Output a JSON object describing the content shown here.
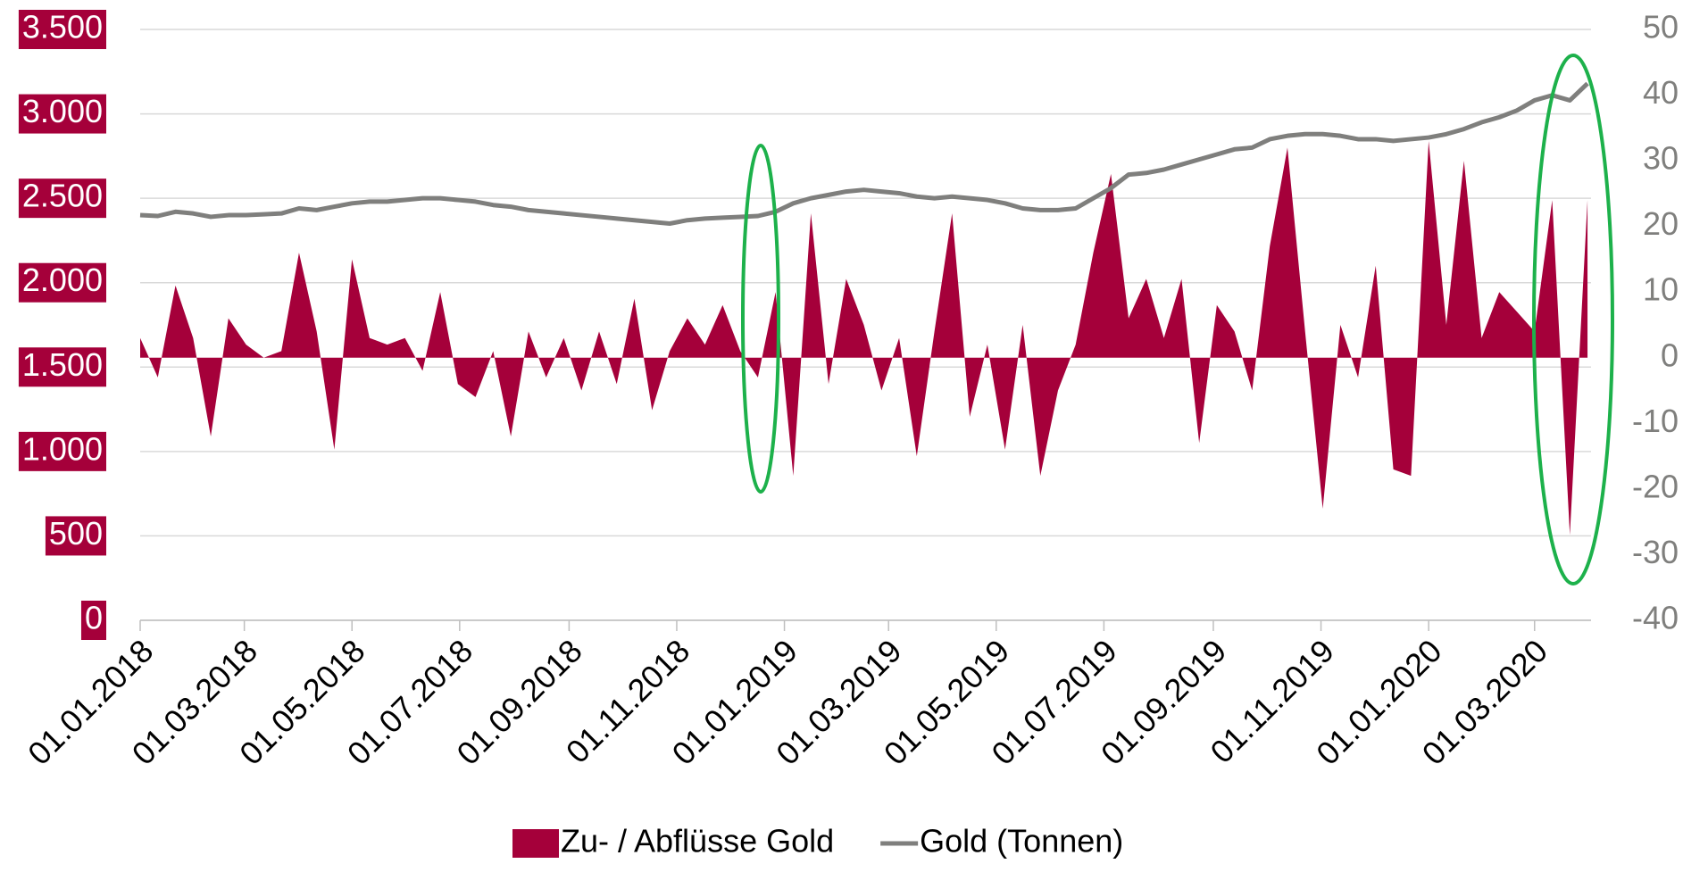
{
  "chart_data": {
    "type": "line",
    "x": [
      "2018-01-01",
      "2018-01-11",
      "2018-01-21",
      "2018-01-31",
      "2018-02-10",
      "2018-02-20",
      "2018-03-02",
      "2018-03-12",
      "2018-03-22",
      "2018-04-01",
      "2018-04-11",
      "2018-04-21",
      "2018-05-01",
      "2018-05-11",
      "2018-05-21",
      "2018-05-31",
      "2018-06-10",
      "2018-06-20",
      "2018-06-30",
      "2018-07-10",
      "2018-07-20",
      "2018-07-30",
      "2018-08-09",
      "2018-08-19",
      "2018-08-29",
      "2018-09-08",
      "2018-09-18",
      "2018-09-28",
      "2018-10-08",
      "2018-10-18",
      "2018-10-28",
      "2018-11-07",
      "2018-11-17",
      "2018-11-27",
      "2018-12-07",
      "2018-12-17",
      "2018-12-27",
      "2019-01-06",
      "2019-01-16",
      "2019-01-26",
      "2019-02-05",
      "2019-02-15",
      "2019-02-25",
      "2019-03-07",
      "2019-03-17",
      "2019-03-27",
      "2019-04-06",
      "2019-04-16",
      "2019-04-26",
      "2019-05-06",
      "2019-05-16",
      "2019-05-26",
      "2019-06-05",
      "2019-06-15",
      "2019-06-25",
      "2019-07-05",
      "2019-07-15",
      "2019-07-25",
      "2019-08-04",
      "2019-08-14",
      "2019-08-24",
      "2019-09-03",
      "2019-09-13",
      "2019-09-23",
      "2019-10-03",
      "2019-10-13",
      "2019-10-23",
      "2019-11-02",
      "2019-11-12",
      "2019-11-22",
      "2019-12-02",
      "2019-12-12",
      "2019-12-22",
      "2020-01-01",
      "2020-01-11",
      "2020-01-21",
      "2020-01-31",
      "2020-02-10",
      "2020-02-20",
      "2020-03-01",
      "2020-03-11",
      "2020-03-21",
      "2020-03-31"
    ],
    "series": [
      {
        "name": "Zu- / Abflüsse Gold",
        "type": "area",
        "axis": "y2",
        "color": "#a5003a",
        "values": [
          3,
          -3,
          11,
          3,
          -12,
          6,
          2,
          0,
          1,
          16,
          4,
          -14,
          15,
          3,
          2,
          3,
          -2,
          10,
          -4,
          -6,
          1,
          -12,
          4,
          -3,
          3,
          -5,
          4,
          -4,
          9,
          -8,
          1,
          6,
          2,
          8,
          1,
          -3,
          10,
          -18,
          22,
          -4,
          12,
          5,
          -5,
          3,
          -15,
          4,
          22,
          -9,
          2,
          -14,
          5,
          -18,
          -5,
          2,
          16,
          28,
          6,
          12,
          3,
          12,
          -13,
          8,
          4,
          -5,
          17,
          32,
          4,
          -23,
          5,
          -3,
          14,
          -17,
          -18,
          33,
          5,
          30,
          3,
          10,
          7,
          4,
          24,
          -27,
          24
        ]
      },
      {
        "name": "Gold (Tonnen)",
        "type": "line",
        "axis": "y",
        "color": "#7f7f7d",
        "values": [
          2400,
          2395,
          2420,
          2410,
          2390,
          2400,
          2400,
          2405,
          2410,
          2440,
          2430,
          2450,
          2470,
          2480,
          2480,
          2490,
          2500,
          2500,
          2490,
          2480,
          2460,
          2450,
          2430,
          2420,
          2410,
          2400,
          2390,
          2380,
          2370,
          2360,
          2350,
          2370,
          2380,
          2385,
          2390,
          2395,
          2420,
          2470,
          2500,
          2520,
          2540,
          2550,
          2540,
          2530,
          2510,
          2500,
          2510,
          2500,
          2490,
          2470,
          2440,
          2430,
          2430,
          2440,
          2500,
          2560,
          2640,
          2650,
          2670,
          2700,
          2730,
          2760,
          2790,
          2800,
          2850,
          2870,
          2880,
          2880,
          2870,
          2850,
          2850,
          2840,
          2850,
          2860,
          2880,
          2910,
          2950,
          2980,
          3020,
          3080,
          3110,
          3080,
          3180
        ]
      }
    ],
    "xlim": [
      "2018-01-01",
      "2020-04-02"
    ],
    "xticks": [
      {
        "value": "2018-01-01",
        "label": "01.01.2018"
      },
      {
        "value": "2018-03-01",
        "label": "01.03.2018"
      },
      {
        "value": "2018-05-01",
        "label": "01.05.2018"
      },
      {
        "value": "2018-07-01",
        "label": "01.07.2018"
      },
      {
        "value": "2018-09-01",
        "label": "01.09.2018"
      },
      {
        "value": "2018-11-01",
        "label": "01.11.2018"
      },
      {
        "value": "2019-01-01",
        "label": "01.01.2019"
      },
      {
        "value": "2019-03-01",
        "label": "01.03.2019"
      },
      {
        "value": "2019-05-01",
        "label": "01.05.2019"
      },
      {
        "value": "2019-07-01",
        "label": "01.07.2019"
      },
      {
        "value": "2019-09-01",
        "label": "01.09.2019"
      },
      {
        "value": "2019-11-01",
        "label": "01.11.2019"
      },
      {
        "value": "2020-01-01",
        "label": "01.01.2020"
      },
      {
        "value": "2020-03-01",
        "label": "01.03.2020"
      }
    ],
    "ylim": [
      0,
      3500
    ],
    "yticks": [
      0,
      {
        "value": 500,
        "label": "500"
      },
      {
        "value": 1000,
        "label": "1.000"
      },
      {
        "value": 1500,
        "label": "1.500"
      },
      {
        "value": 2000,
        "label": "2.000"
      },
      {
        "value": 2500,
        "label": "2.500"
      },
      {
        "value": 3000,
        "label": "3.000"
      },
      {
        "value": 3500,
        "label": "3.500"
      }
    ],
    "y2lim": [
      -40,
      50
    ],
    "y2ticks": [
      -40,
      -30,
      -20,
      -10,
      0,
      10,
      20,
      30,
      40,
      50
    ],
    "grid": true,
    "legend": "bottom"
  }
}
